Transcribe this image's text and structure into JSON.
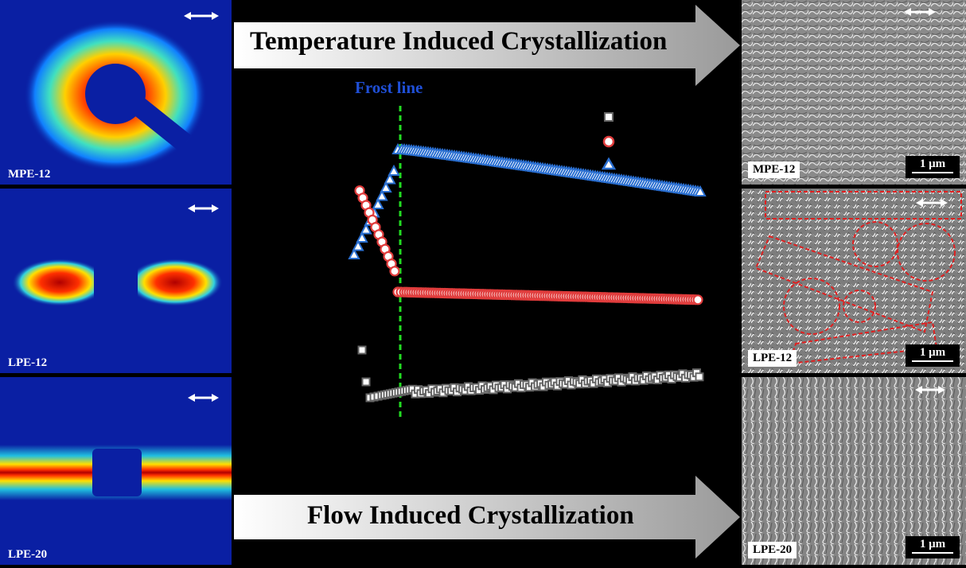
{
  "left_panels": [
    {
      "label": "MPE-12"
    },
    {
      "label": "LPE-12"
    },
    {
      "label": "LPE-20"
    }
  ],
  "right_panels": [
    {
      "label": "MPE-12",
      "scale": "1 μm"
    },
    {
      "label": "LPE-12",
      "scale": "1 μm"
    },
    {
      "label": "LPE-20",
      "scale": "1 μm"
    }
  ],
  "top_banner": "Temperature Induced Crystallization",
  "bottom_banner": "Flow Induced Crystallization",
  "frost_line_label": "Frost line",
  "colors": {
    "frost_line": "#22dd22",
    "frost_label": "#1f4fd6",
    "triangle": "#2a6fd1",
    "circle": "#e03c3c",
    "square": "#666666"
  },
  "chart_data": {
    "type": "scatter",
    "series": [
      {
        "marker": "triangle",
        "note": "upper"
      },
      {
        "marker": "circle",
        "note": "middle"
      },
      {
        "marker": "square",
        "note": "lower"
      }
    ]
  }
}
